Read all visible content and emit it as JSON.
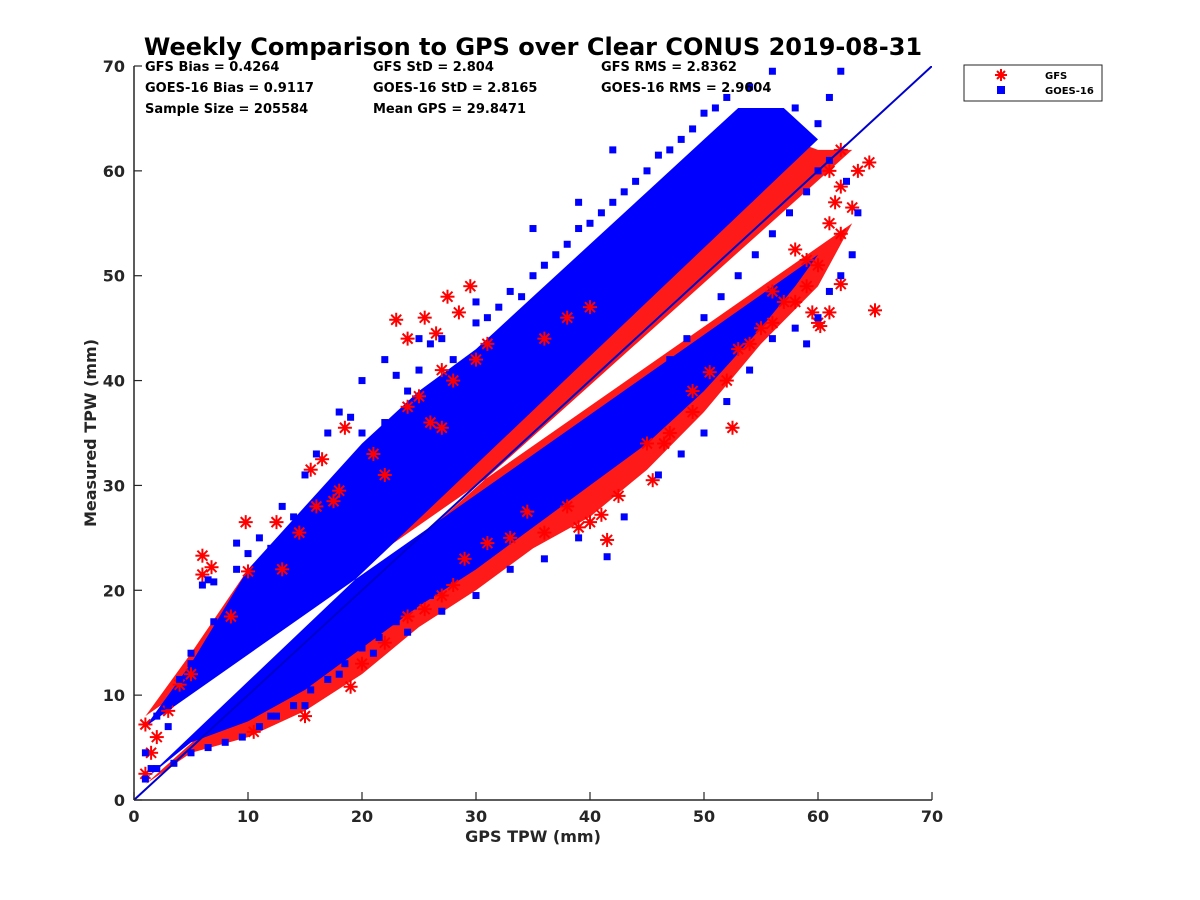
{
  "chart_data": {
    "type": "scatter",
    "title": "Weekly Comparison to GPS over Clear CONUS 2019-08-31",
    "xlabel": "GPS TPW (mm)",
    "ylabel": "Measured TPW (mm)",
    "xlim": [
      0,
      70
    ],
    "ylim": [
      0,
      70
    ],
    "x_ticks": [
      "0",
      "10",
      "20",
      "30",
      "40",
      "50",
      "60",
      "70"
    ],
    "y_ticks": [
      "0",
      "10",
      "20",
      "30",
      "40",
      "50",
      "60",
      "70"
    ],
    "grid": false,
    "legend_position": "outside-top-right",
    "stats": [
      [
        "GFS Bias = 0.4264",
        "GFS StD = 2.804",
        "GFS RMS = 2.8362"
      ],
      [
        "GOES-16 Bias = 0.9117",
        "GOES-16 StD = 2.8165",
        "GOES-16 RMS = 2.9604"
      ],
      [
        "Sample Size = 205584",
        "Mean GPS = 29.8471",
        ""
      ]
    ],
    "reference_line": {
      "x": [
        0,
        70
      ],
      "y": [
        0,
        70
      ],
      "color": "#0000cc"
    },
    "series": [
      {
        "name": "GFS",
        "marker": "asterisk",
        "color": "#ff0000",
        "points": [
          [
            1,
            2.5
          ],
          [
            1,
            7.2
          ],
          [
            1.5,
            4.5
          ],
          [
            2,
            6
          ],
          [
            3,
            8.5
          ],
          [
            4,
            11
          ],
          [
            5,
            12
          ],
          [
            6,
            23.3
          ],
          [
            6,
            21.5
          ],
          [
            6.8,
            22.2
          ],
          [
            8.5,
            17.5
          ],
          [
            9.8,
            26.5
          ],
          [
            10,
            21.8
          ],
          [
            12.5,
            26.5
          ],
          [
            13,
            22
          ],
          [
            14.5,
            25.5
          ],
          [
            15.5,
            31.5
          ],
          [
            16.5,
            32.5
          ],
          [
            16,
            28
          ],
          [
            17.5,
            28.5
          ],
          [
            18,
            29.5
          ],
          [
            18.5,
            35.5
          ],
          [
            10.5,
            6.5
          ],
          [
            15,
            8
          ],
          [
            19,
            10.8
          ],
          [
            20,
            13
          ],
          [
            22,
            15
          ],
          [
            24,
            17.5
          ],
          [
            25.5,
            18.2
          ],
          [
            27,
            19.5
          ],
          [
            28,
            20.5
          ],
          [
            29,
            23
          ],
          [
            31,
            24.5
          ],
          [
            33,
            25
          ],
          [
            34.5,
            27.5
          ],
          [
            36,
            25.5
          ],
          [
            38,
            28
          ],
          [
            39,
            26
          ],
          [
            40,
            26.5
          ],
          [
            41.5,
            24.8
          ],
          [
            41,
            27.2
          ],
          [
            42.5,
            29
          ],
          [
            45.5,
            30.5
          ],
          [
            45,
            34
          ],
          [
            46.5,
            34
          ],
          [
            47,
            35
          ],
          [
            49,
            37
          ],
          [
            49,
            39
          ],
          [
            50.5,
            40.8
          ],
          [
            52.5,
            35.5
          ],
          [
            52,
            40
          ],
          [
            53,
            43
          ],
          [
            54,
            43.5
          ],
          [
            55,
            45
          ],
          [
            56,
            45.5
          ],
          [
            56,
            48.5
          ],
          [
            57,
            47.5
          ],
          [
            58,
            47.5
          ],
          [
            59,
            49
          ],
          [
            59.5,
            46.5
          ],
          [
            60,
            45.5
          ],
          [
            60.2,
            45.2
          ],
          [
            61,
            46.5
          ],
          [
            62,
            49.2
          ],
          [
            58,
            52.5
          ],
          [
            59,
            51.5
          ],
          [
            60,
            51
          ],
          [
            61,
            55
          ],
          [
            61.5,
            57
          ],
          [
            62,
            58.5
          ],
          [
            62,
            54
          ],
          [
            63,
            56.5
          ],
          [
            63.5,
            60
          ],
          [
            64.5,
            60.8
          ],
          [
            65,
            46.7
          ],
          [
            61,
            60
          ],
          [
            62,
            62
          ],
          [
            23,
            45.8
          ],
          [
            24,
            44
          ],
          [
            25.5,
            46
          ],
          [
            26.5,
            44.5
          ],
          [
            27.5,
            48
          ],
          [
            28.5,
            46.5
          ],
          [
            29.5,
            49
          ],
          [
            27,
            41
          ],
          [
            28,
            40
          ],
          [
            24,
            37.5
          ],
          [
            25,
            38.5
          ],
          [
            26,
            36
          ],
          [
            30,
            42
          ],
          [
            31,
            43.5
          ],
          [
            27,
            35.5
          ],
          [
            21,
            33
          ],
          [
            22,
            31
          ],
          [
            36,
            44
          ],
          [
            38,
            46
          ],
          [
            40,
            47
          ]
        ]
      },
      {
        "name": "GOES-16",
        "marker": "square",
        "color": "#0000ff",
        "points": [
          [
            1,
            2
          ],
          [
            1.5,
            3
          ],
          [
            2,
            8
          ],
          [
            3,
            9
          ],
          [
            4,
            11.5
          ],
          [
            5,
            13
          ],
          [
            6,
            20.5
          ],
          [
            6.5,
            21
          ],
          [
            7,
            20.8
          ],
          [
            9,
            24.5
          ],
          [
            10,
            23.5
          ],
          [
            12,
            24
          ],
          [
            14,
            27
          ],
          [
            16,
            33
          ],
          [
            18,
            37
          ],
          [
            19,
            36.5
          ],
          [
            20,
            35
          ],
          [
            22,
            36
          ],
          [
            23,
            40.5
          ],
          [
            24,
            39
          ],
          [
            25,
            41
          ],
          [
            26,
            43.5
          ],
          [
            27,
            44
          ],
          [
            28,
            42
          ],
          [
            30,
            45.5
          ],
          [
            31,
            46
          ],
          [
            32,
            47
          ],
          [
            33,
            48.5
          ],
          [
            34,
            48
          ],
          [
            35,
            50
          ],
          [
            36,
            51
          ],
          [
            37,
            52
          ],
          [
            38,
            53
          ],
          [
            39,
            54.5
          ],
          [
            40,
            55
          ],
          [
            41,
            56
          ],
          [
            42,
            57
          ],
          [
            43,
            58
          ],
          [
            44,
            59
          ],
          [
            45,
            60
          ],
          [
            46,
            61.5
          ],
          [
            47,
            62
          ],
          [
            48,
            63
          ],
          [
            49,
            64
          ],
          [
            50,
            65.5
          ],
          [
            51,
            66
          ],
          [
            52,
            67
          ],
          [
            54,
            68
          ],
          [
            56,
            69.5
          ],
          [
            58,
            66
          ],
          [
            60,
            64.5
          ],
          [
            61,
            67
          ],
          [
            62,
            69.5
          ],
          [
            42,
            62
          ],
          [
            39,
            57
          ],
          [
            35,
            54.5
          ],
          [
            30,
            47.5
          ],
          [
            25,
            44
          ],
          [
            22,
            42
          ],
          [
            20,
            40
          ],
          [
            17,
            35
          ],
          [
            15,
            31
          ],
          [
            13,
            28
          ],
          [
            11,
            25
          ],
          [
            9,
            22
          ],
          [
            7,
            17
          ],
          [
            5,
            14
          ],
          [
            3,
            7
          ],
          [
            12,
            8
          ],
          [
            15,
            9
          ],
          [
            18,
            12
          ],
          [
            21,
            14
          ],
          [
            24,
            16
          ],
          [
            27,
            18
          ],
          [
            30,
            19.5
          ],
          [
            33,
            22
          ],
          [
            36,
            23
          ],
          [
            39,
            25
          ],
          [
            41.5,
            23.2
          ],
          [
            43,
            27
          ],
          [
            46,
            31
          ],
          [
            48,
            33
          ],
          [
            50,
            35
          ],
          [
            52,
            38
          ],
          [
            54,
            41
          ],
          [
            56,
            44
          ],
          [
            58,
            45
          ],
          [
            59,
            43.5
          ],
          [
            60,
            46
          ],
          [
            61,
            48.5
          ],
          [
            62,
            50
          ],
          [
            63,
            52
          ],
          [
            63.5,
            56
          ],
          [
            62.5,
            59
          ],
          [
            61,
            61
          ],
          [
            60,
            60
          ],
          [
            59,
            58
          ],
          [
            57.5,
            56
          ],
          [
            56,
            54
          ],
          [
            54.5,
            52
          ],
          [
            53,
            50
          ],
          [
            51.5,
            48
          ],
          [
            50,
            46
          ],
          [
            48.5,
            44
          ],
          [
            47,
            42
          ],
          [
            45.5,
            40
          ],
          [
            44,
            38
          ],
          [
            42.5,
            36
          ],
          [
            41,
            34
          ],
          [
            39.5,
            32
          ],
          [
            38,
            31
          ],
          [
            36.5,
            29
          ],
          [
            35,
            28
          ],
          [
            33.5,
            26.5
          ],
          [
            32,
            25
          ],
          [
            30.5,
            23.5
          ],
          [
            29,
            22
          ],
          [
            27.5,
            21
          ],
          [
            26,
            19.5
          ],
          [
            24.5,
            18.5
          ],
          [
            23,
            17
          ],
          [
            21.5,
            15.5
          ],
          [
            20,
            14.5
          ],
          [
            18.5,
            13
          ],
          [
            17,
            11.5
          ],
          [
            15.5,
            10.5
          ],
          [
            14,
            9
          ],
          [
            12.5,
            8
          ],
          [
            11,
            7
          ],
          [
            9.5,
            6
          ],
          [
            8,
            5.5
          ],
          [
            6.5,
            5
          ],
          [
            5,
            4.5
          ],
          [
            3.5,
            3.5
          ],
          [
            2,
            3
          ],
          [
            1,
            4.5
          ]
        ]
      }
    ]
  }
}
